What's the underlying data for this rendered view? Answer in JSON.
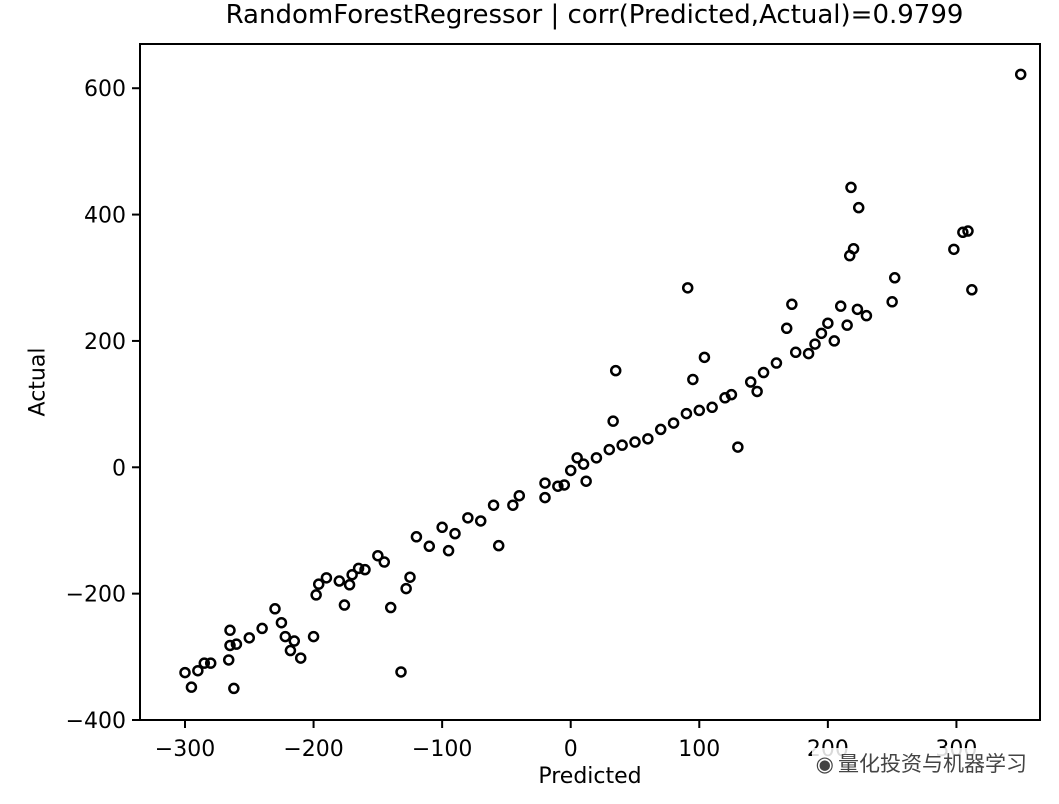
{
  "chart_data": {
    "type": "scatter",
    "title": "RandomForestRegressor | corr(Predicted,Actual)=0.9799",
    "xlabel": "Predicted",
    "ylabel": "Actual",
    "xlim": [
      -335,
      365
    ],
    "ylim": [
      -400,
      670
    ],
    "xticks": [
      -300,
      -200,
      -100,
      0,
      100,
      200,
      300
    ],
    "xtick_labels": [
      "−300",
      "−200",
      "−100",
      "0",
      "100",
      "200",
      "300"
    ],
    "yticks": [
      -400,
      -200,
      0,
      200,
      400,
      600
    ],
    "ytick_labels": [
      "−400",
      "−200",
      "0",
      "200",
      "400",
      "600"
    ],
    "grid": false,
    "legend": "none",
    "marker": "open-circle",
    "color": "#000000",
    "series": [
      {
        "x": [
          350,
          218,
          224,
          220,
          217,
          252,
          298,
          305,
          309,
          312,
          91,
          210,
          200,
          223,
          215,
          172,
          168,
          104,
          95,
          35,
          33,
          130,
          -300,
          -295,
          -290,
          -285,
          -265,
          -265,
          -266,
          -262,
          -230,
          -225,
          -222,
          -218,
          -210,
          -200,
          -198,
          -196,
          -180,
          -176,
          -172,
          -170,
          -160,
          -140,
          -132,
          -128,
          -125,
          -95,
          -56,
          -20,
          -5,
          12,
          30,
          60,
          90,
          120,
          150,
          175,
          195,
          -280,
          -250,
          -150,
          -120,
          -100,
          -80,
          -60,
          -40,
          -20,
          0,
          20,
          40,
          70,
          100,
          140,
          160,
          190,
          230,
          250,
          -260,
          -240,
          -190,
          -165,
          -110,
          -90,
          -70,
          -45,
          -10,
          10,
          50,
          80,
          110,
          145,
          185,
          -215,
          -145,
          5,
          125,
          205
        ],
        "y": [
          622,
          443,
          411,
          346,
          335,
          300,
          345,
          372,
          374,
          281,
          284,
          255,
          228,
          250,
          225,
          258,
          220,
          174,
          139,
          153,
          73,
          32,
          -325,
          -348,
          -322,
          -310,
          -258,
          -282,
          -305,
          -350,
          -224,
          -246,
          -268,
          -290,
          -302,
          -268,
          -202,
          -185,
          -180,
          -218,
          -186,
          -170,
          -162,
          -222,
          -324,
          -192,
          -174,
          -132,
          -124,
          -48,
          -28,
          -22,
          28,
          45,
          85,
          110,
          150,
          182,
          212,
          -310,
          -270,
          -140,
          -110,
          -95,
          -80,
          -60,
          -45,
          -25,
          -5,
          15,
          35,
          60,
          90,
          135,
          165,
          195,
          240,
          262,
          -280,
          -255,
          -175,
          -160,
          -125,
          -105,
          -85,
          -60,
          -30,
          5,
          40,
          70,
          95,
          120,
          180,
          -275,
          -150,
          15,
          115,
          200
        ]
      }
    ]
  },
  "watermark": "量化投资与机器学习"
}
